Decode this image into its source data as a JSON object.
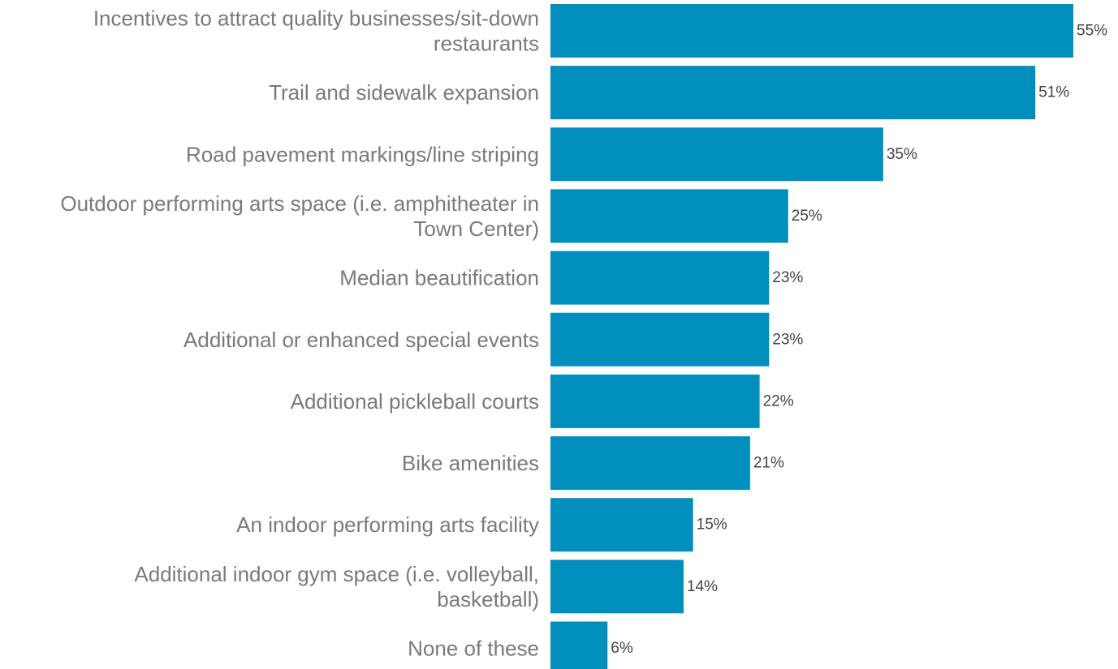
{
  "chart_data": {
    "type": "bar",
    "orientation": "horizontal",
    "categories": [
      "Incentives to attract quality businesses/sit-down restaurants",
      "Trail and sidewalk expansion",
      "Road pavement markings/line striping",
      "Outdoor performing arts space (i.e. amphitheater in Town Center)",
      "Median beautification",
      "Additional or enhanced special events",
      "Additional pickleball courts",
      "Bike amenities",
      "An indoor performing arts facility",
      "Additional indoor gym space (i.e. volleyball, basketball)",
      "None of these"
    ],
    "category_lines": [
      [
        "Incentives to attract quality businesses/sit-down",
        "restaurants"
      ],
      [
        "Trail and sidewalk expansion"
      ],
      [
        "Road pavement markings/line striping"
      ],
      [
        "Outdoor performing arts space (i.e. amphitheater in",
        "Town Center)"
      ],
      [
        "Median beautification"
      ],
      [
        "Additional or enhanced special events"
      ],
      [
        "Additional pickleball courts"
      ],
      [
        "Bike amenities"
      ],
      [
        "An indoor performing arts facility"
      ],
      [
        "Additional indoor gym space (i.e. volleyball,",
        "basketball)"
      ],
      [
        "None of these"
      ]
    ],
    "values": [
      55,
      51,
      35,
      25,
      23,
      23,
      22,
      21,
      15,
      14,
      6
    ],
    "value_labels": [
      "55%",
      "51%",
      "35%",
      "25%",
      "23%",
      "23%",
      "22%",
      "21%",
      "15%",
      "14%",
      "6%"
    ],
    "unit": "%",
    "xlim": [
      0,
      55
    ],
    "title": "",
    "xlabel": "",
    "ylabel": "",
    "grid": false,
    "legend": "none",
    "bar_color": "#008fbd"
  }
}
